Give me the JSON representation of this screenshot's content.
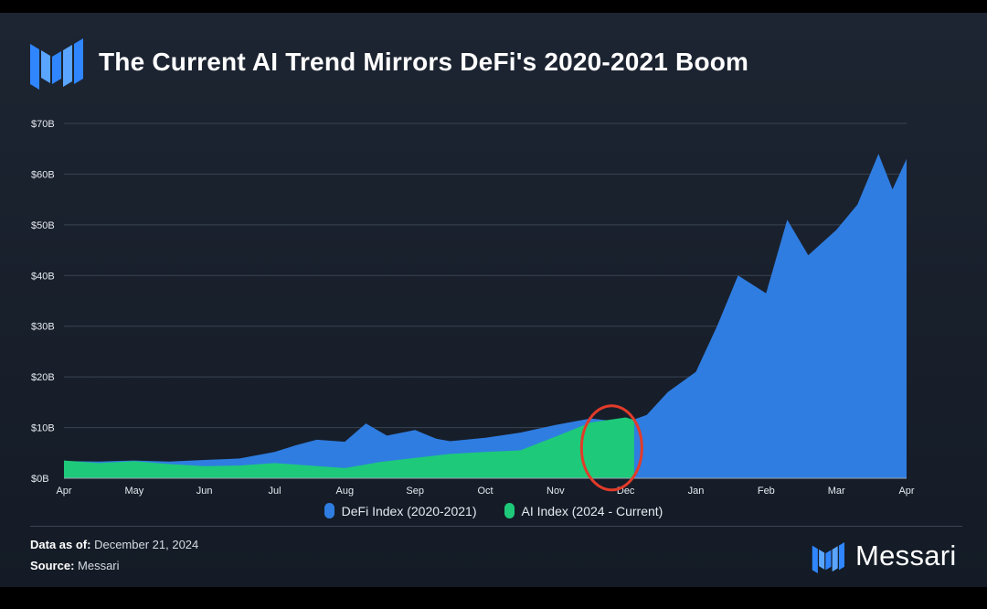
{
  "title": "The Current AI Trend Mirrors DeFi's 2020-2021 Boom",
  "colors": {
    "background": "#1a2230",
    "defi": "#2f7de1",
    "ai": "#1ec97a",
    "highlight_circle": "#e23b2a",
    "grid": "#3a4352",
    "text": "#e6e9ef"
  },
  "chart_data": {
    "type": "area",
    "x_ticks": [
      "Apr",
      "May",
      "Jun",
      "Jul",
      "Aug",
      "Sep",
      "Oct",
      "Nov",
      "Dec",
      "Jan",
      "Feb",
      "Mar",
      "Apr"
    ],
    "y_ticks": [
      "$0B",
      "$10B",
      "$20B",
      "$30B",
      "$40B",
      "$50B",
      "$60B",
      "$70B"
    ],
    "ylim": [
      0,
      70
    ],
    "grid": true,
    "legend_position": "bottom",
    "series": [
      {
        "name": "DeFi Index (2020-2021)",
        "color": "#2f7de1",
        "points": [
          [
            0,
            3.4
          ],
          [
            0.5,
            3.3
          ],
          [
            1,
            3.5
          ],
          [
            1.5,
            3.3
          ],
          [
            2,
            3.6
          ],
          [
            2.5,
            3.9
          ],
          [
            3,
            5.2
          ],
          [
            3.3,
            6.5
          ],
          [
            3.6,
            7.6
          ],
          [
            4,
            7.2
          ],
          [
            4.3,
            10.8
          ],
          [
            4.6,
            8.4
          ],
          [
            5,
            9.5
          ],
          [
            5.3,
            7.8
          ],
          [
            5.5,
            7.3
          ],
          [
            6,
            8.0
          ],
          [
            6.5,
            9.0
          ],
          [
            7,
            10.5
          ],
          [
            7.5,
            11.8
          ],
          [
            8,
            11.0
          ],
          [
            8.3,
            12.5
          ],
          [
            8.6,
            17.0
          ],
          [
            9,
            21.0
          ],
          [
            9.3,
            30.0
          ],
          [
            9.6,
            40.0
          ],
          [
            10,
            36.5
          ],
          [
            10.3,
            51.0
          ],
          [
            10.6,
            44.0
          ],
          [
            11,
            49.0
          ],
          [
            11.3,
            54.0
          ],
          [
            11.6,
            64.0
          ],
          [
            11.8,
            57.0
          ],
          [
            12,
            63.0
          ]
        ]
      },
      {
        "name": "AI Index (2024 - Current)",
        "color": "#1ec97a",
        "points": [
          [
            0,
            3.5
          ],
          [
            0.5,
            3.0
          ],
          [
            1,
            3.4
          ],
          [
            1.5,
            2.8
          ],
          [
            2,
            2.4
          ],
          [
            2.5,
            2.5
          ],
          [
            3,
            3.0
          ],
          [
            3.5,
            2.5
          ],
          [
            4,
            2.0
          ],
          [
            4.5,
            3.2
          ],
          [
            5,
            4.0
          ],
          [
            5.5,
            4.8
          ],
          [
            6,
            5.2
          ],
          [
            6.5,
            5.5
          ],
          [
            7,
            8.2
          ],
          [
            7.5,
            11.0
          ],
          [
            8,
            12.0
          ],
          [
            8.12,
            11.5
          ]
        ]
      }
    ],
    "annotation": "red-circle-highlight-nov"
  },
  "footer": {
    "data_label": "Data as of:",
    "data_value": " December 21, 2024",
    "source_label": "Source:",
    "source_value": " Messari"
  },
  "brand": {
    "name": "Messari"
  }
}
